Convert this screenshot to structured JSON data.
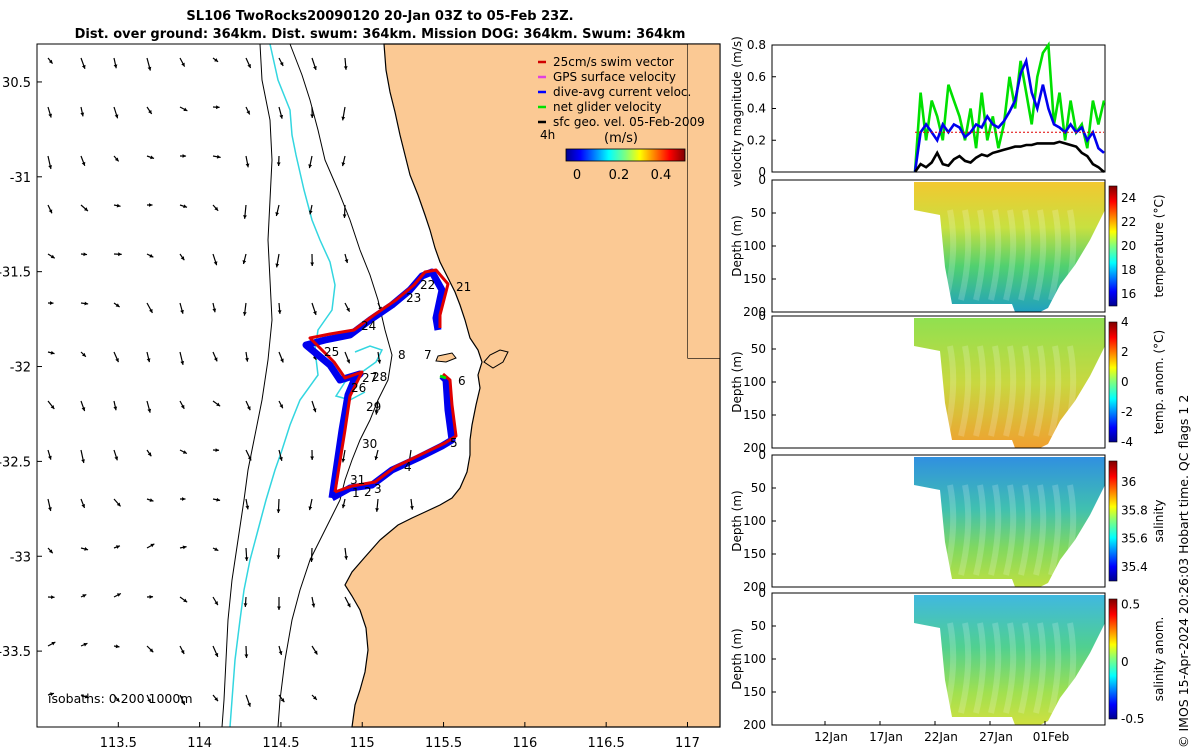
{
  "title_line1": "SL106 TwoRocks20090120 20-Jan 03Z to 05-Feb 23Z.",
  "title_line2": "Dist. over ground: 364km. Dist. swum: 364km. Mission DOG: 364km. Swum: 364km",
  "credit": "© IMOS 15-Apr-2024 20:26:03 Hobart time. QC flags 1  2",
  "map": {
    "lon_ticks": [
      "113.5",
      "114",
      "114.5",
      "115",
      "115.5",
      "116",
      "116.5",
      "117"
    ],
    "lat_ticks": [
      "30.5",
      "-31",
      "-31.5",
      "-32",
      "-32.5",
      "-33",
      "-33.5"
    ],
    "xlim": [
      113.0,
      117.2
    ],
    "ylim": [
      -33.9,
      -30.3
    ],
    "legend": [
      {
        "label": "25cm/s swim vector",
        "color": "#d00000"
      },
      {
        "label": "GPS surface velocity",
        "color": "#e040e0"
      },
      {
        "label": "dive-avg current veloc.",
        "color": "#0000ff"
      },
      {
        "label": "net glider velocity",
        "color": "#00e000"
      },
      {
        "label": "sfc geo. vel. 05-Feb-2009",
        "color": "#000000"
      }
    ],
    "time_label": "4h",
    "colorbar_label": "(m/s)",
    "colorbar_ticks": [
      "0",
      "0.2",
      "0.4"
    ],
    "isobath_label": "isobaths: 0   200   1000m",
    "waypoint_labels": [
      "22",
      "21",
      "23",
      "24",
      "25",
      "8",
      "7",
      "6",
      "26",
      "27",
      "28",
      "29",
      "30",
      "5",
      "4",
      "31",
      "1",
      "2",
      "3"
    ],
    "colors": {
      "land": "#fbc994",
      "ocean": "#ffffff",
      "isobath_200": "#000000",
      "isobath_1000": "#000000",
      "isobath_0": "#33d6e0",
      "track_red": "#e00000",
      "track_blue": "#0000ee"
    }
  },
  "chart_data": [
    {
      "type": "line",
      "title": "",
      "xlabel": "",
      "ylabel": "velocity magnitude (m/s)",
      "ylim": [
        0,
        0.8
      ],
      "yticks": [
        "0",
        "0.2",
        "0.4",
        "0.6",
        "0.8"
      ],
      "x_ticks": [
        "12Jan",
        "17Jan",
        "22Jan",
        "27Jan",
        "01Feb"
      ],
      "series": [
        {
          "name": "net glider velocity",
          "color": "#00e000",
          "values": [
            0.0,
            0.5,
            0.2,
            0.45,
            0.35,
            0.2,
            0.55,
            0.45,
            0.35,
            0.2,
            0.4,
            0.15,
            0.5,
            0.2,
            0.35,
            0.15,
            0.3,
            0.6,
            0.4,
            0.7,
            0.5,
            0.3,
            0.6,
            0.75,
            0.8,
            0.3,
            0.5,
            0.2,
            0.45,
            0.25,
            0.3,
            0.15,
            0.45,
            0.3,
            0.45
          ]
        },
        {
          "name": "dive-avg current veloc.",
          "color": "#0000ee",
          "values": [
            0.0,
            0.25,
            0.3,
            0.25,
            0.2,
            0.3,
            0.25,
            0.3,
            0.28,
            0.22,
            0.25,
            0.3,
            0.28,
            0.35,
            0.3,
            0.28,
            0.32,
            0.38,
            0.45,
            0.62,
            0.7,
            0.5,
            0.4,
            0.55,
            0.4,
            0.3,
            0.28,
            0.25,
            0.3,
            0.25,
            0.28,
            0.2,
            0.25,
            0.15,
            0.12
          ]
        },
        {
          "name": "25cm/s swim vector",
          "color": "#e00000",
          "values": [
            0.25,
            0.25,
            0.25,
            0.25,
            0.25,
            0.25,
            0.25,
            0.25,
            0.25,
            0.25,
            0.25,
            0.25,
            0.25,
            0.25,
            0.25,
            0.25,
            0.25,
            0.25,
            0.25,
            0.25,
            0.25,
            0.25,
            0.25,
            0.25,
            0.25,
            0.25,
            0.25,
            0.25,
            0.25,
            0.25,
            0.25,
            0.25,
            0.25,
            0.25,
            0.25
          ]
        },
        {
          "name": "sfc geo. vel.",
          "color": "#000000",
          "values": [
            0.0,
            0.05,
            0.03,
            0.06,
            0.12,
            0.05,
            0.04,
            0.08,
            0.1,
            0.07,
            0.06,
            0.09,
            0.11,
            0.1,
            0.12,
            0.13,
            0.14,
            0.15,
            0.16,
            0.16,
            0.17,
            0.17,
            0.18,
            0.18,
            0.18,
            0.18,
            0.19,
            0.18,
            0.17,
            0.16,
            0.12,
            0.1,
            0.05,
            0.03,
            0.0
          ]
        }
      ]
    },
    {
      "type": "heatmap",
      "ylabel": "Depth (m)",
      "yticks": [
        "0",
        "50",
        "100",
        "150",
        "200"
      ],
      "colorbar_label": "temperature (°C)",
      "colorbar_ticks": [
        "16",
        "18",
        "20",
        "22",
        "24"
      ],
      "clim": [
        15,
        25
      ]
    },
    {
      "type": "heatmap",
      "ylabel": "Depth (m)",
      "yticks": [
        "0",
        "50",
        "100",
        "150",
        "200"
      ],
      "colorbar_label": "temp. anom. (°C)",
      "colorbar_ticks": [
        "-4",
        "-2",
        "0",
        "2",
        "4"
      ],
      "clim": [
        -4,
        4
      ]
    },
    {
      "type": "heatmap",
      "ylabel": "Depth (m)",
      "yticks": [
        "0",
        "50",
        "100",
        "150",
        "200"
      ],
      "colorbar_label": "salinity",
      "colorbar_ticks": [
        "35.4",
        "35.6",
        "35.8",
        "36"
      ],
      "clim": [
        35.3,
        36.15
      ]
    },
    {
      "type": "heatmap",
      "ylabel": "Depth (m)",
      "yticks": [
        "0",
        "50",
        "100",
        "150",
        "200"
      ],
      "colorbar_label": "salinity anom.",
      "colorbar_ticks": [
        "-0.5",
        "0",
        "0.5"
      ],
      "clim": [
        -0.5,
        0.55
      ]
    }
  ]
}
